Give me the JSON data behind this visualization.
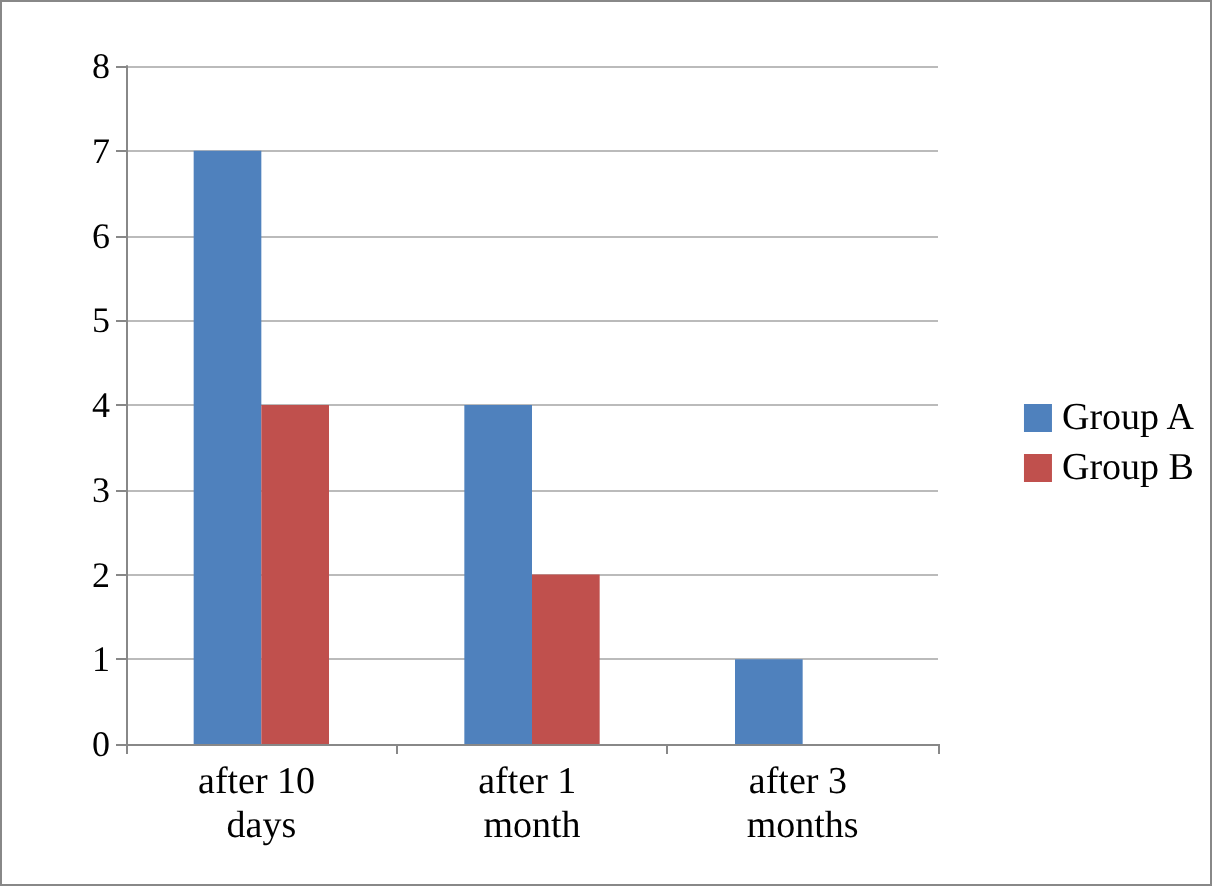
{
  "chart_data": {
    "type": "bar",
    "categories": [
      "after 10 days",
      "after 1 month",
      "after 3 months"
    ],
    "series": [
      {
        "name": "Group A",
        "color": "#4f81bd",
        "values": [
          7,
          4,
          1
        ]
      },
      {
        "name": "Group B",
        "color": "#c0504d",
        "values": [
          4,
          2,
          0
        ]
      }
    ],
    "ylim": [
      0,
      8
    ],
    "yticks": [
      0,
      1,
      2,
      3,
      4,
      5,
      6,
      7,
      8
    ],
    "grid": "y",
    "legend": "right"
  }
}
